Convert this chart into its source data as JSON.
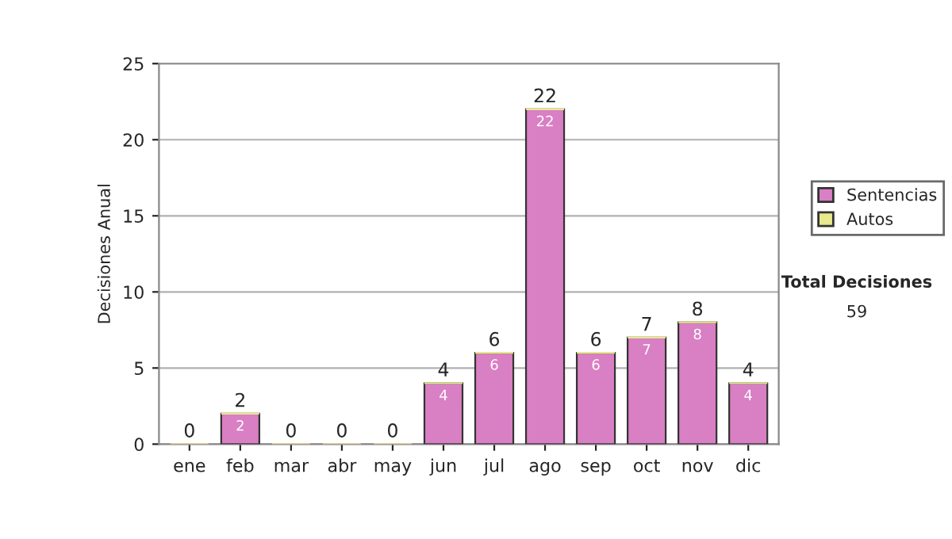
{
  "chart_data": {
    "type": "bar",
    "stacked": true,
    "categories": [
      "ene",
      "feb",
      "mar",
      "abr",
      "may",
      "jun",
      "jul",
      "ago",
      "sep",
      "oct",
      "nov",
      "dic"
    ],
    "series": [
      {
        "name": "Sentencias",
        "color": "#d97fc4",
        "values": [
          0,
          2,
          0,
          0,
          0,
          4,
          6,
          22,
          6,
          7,
          8,
          4
        ],
        "value_labels": [
          null,
          "2",
          null,
          null,
          null,
          "4",
          "6",
          "22",
          "6",
          "7",
          "8",
          "4"
        ]
      },
      {
        "name": "Autos",
        "color": "#e8e88c",
        "values": [
          0,
          0,
          0,
          0,
          0,
          0,
          0,
          0,
          0,
          0,
          0,
          0
        ]
      }
    ],
    "totals": [
      "0",
      "2",
      "0",
      "0",
      "0",
      "4",
      "6",
      "22",
      "6",
      "7",
      "8",
      "4"
    ],
    "ylabel": "Decisiones Anual",
    "ylim": [
      0,
      25
    ],
    "yticks": [
      0,
      5,
      10,
      15,
      20,
      25
    ],
    "grid": "y",
    "legend": "right",
    "annotations": [
      "Total Decisiones",
      "59"
    ]
  }
}
